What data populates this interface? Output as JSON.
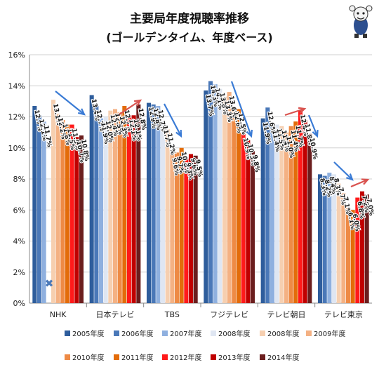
{
  "chart_data": {
    "type": "bar",
    "title": "主要局年度視聴率推移",
    "subtitle": "(ゴールデンタイム、年度ベース)",
    "ylim": [
      0,
      16
    ],
    "yticks": [
      "0%",
      "2%",
      "4%",
      "6%",
      "8%",
      "10%",
      "12%",
      "14%",
      "16%"
    ],
    "grid": true,
    "legend_position": "bottom",
    "categories": [
      "NHK",
      "日本テレビ",
      "TBS",
      "フジテレビ",
      "テレビ朝日",
      "テレビ東京"
    ],
    "series": [
      {
        "name": "2005年度",
        "color": "#2e5d9c",
        "values": [
          12.7,
          13.4,
          12.9,
          13.7,
          11.9,
          8.3
        ]
      },
      {
        "name": "2006年度",
        "color": "#4a78b8",
        "values": [
          12.1,
          12.7,
          12.8,
          14.3,
          12.6,
          8.2
        ]
      },
      {
        "name": "2007年度",
        "color": "#8fb0df",
        "values": [
          11.7,
          11.9,
          12.7,
          14.1,
          11.4,
          8.4
        ]
      },
      {
        "name": "2008年度",
        "color": "#dfe6f2",
        "values": [
          0,
          12.0,
          11.7,
          13.8,
          11.5,
          8.3
        ]
      },
      {
        "name": "2008年度",
        "color": "#f6cfb0",
        "values": [
          13.1,
          12.4,
          11.2,
          13.3,
          11.4,
          7.7
        ]
      },
      {
        "name": "2009年度",
        "color": "#f4b183",
        "values": [
          12.2,
          12.5,
          9.6,
          13.6,
          11.0,
          7.1
        ]
      },
      {
        "name": "2010年度",
        "color": "#ee8a45",
        "values": [
          11.8,
          12.3,
          9.7,
          12.6,
          11.4,
          6.1
        ]
      },
      {
        "name": "2011年度",
        "color": "#e36c0a",
        "values": [
          11.5,
          12.7,
          10.0,
          12.5,
          11.7,
          6.0
        ]
      },
      {
        "name": "2012年度",
        "color": "#ff1a1a",
        "values": [
          11.5,
          12.1,
          9.3,
          10.9,
          12.4,
          6.8
        ]
      },
      {
        "name": "2013年度",
        "color": "#c00000",
        "values": [
          10.7,
          12.1,
          9.6,
          10.5,
          11.8,
          7.2
        ]
      },
      {
        "name": "2014年度",
        "color": "#6b1e1e",
        "values": [
          10.8,
          12.8,
          9.5,
          9.8,
          10.9,
          7.0
        ]
      }
    ],
    "data_labels": [
      [
        "12.7%",
        "12.1%",
        "11.7%",
        "",
        "13.1%",
        "12.2%",
        "11.8%",
        "11.5%",
        "11.5%",
        "10.7%",
        "10.8%"
      ],
      [
        "13.4%",
        "12.7%",
        "11.9%",
        "12.0%",
        "12.4%",
        "12.5%",
        "12.3%",
        "12.7%",
        "12.1%",
        "12.1%",
        "12.8%"
      ],
      [
        "12.9%",
        "12.8%",
        "12.7%",
        "11.7%",
        "11.2%",
        "9.6%",
        "9.7%",
        "10.0%",
        "9.3%",
        "9.6%",
        "9.5%"
      ],
      [
        "13.7%",
        "14.3%",
        "14.1%",
        "13.8%",
        "13.3%",
        "13.6%",
        "12.6%",
        "12.5%",
        "10.9%",
        "10.5%",
        "9.8%"
      ],
      [
        "11.9%",
        "12.6%",
        "11.4%",
        "11.5%",
        "11.4%",
        "11.0%",
        "11.4%",
        "11.7%",
        "12.4%",
        "11.8%",
        "10.9%"
      ],
      [
        "8.3%",
        "8.2%",
        "8.4%",
        "8.3%",
        "7.7%",
        "7.1%",
        "6.1%",
        "6.0%",
        "6.8%",
        "7.2%",
        "7.0%"
      ]
    ],
    "colors": {
      "axis": "#888888",
      "grid": "#d0d0d0",
      "trend_down": "#3a7bd5",
      "trend_up": "#d9534f",
      "marker": "#4a78b8"
    }
  }
}
